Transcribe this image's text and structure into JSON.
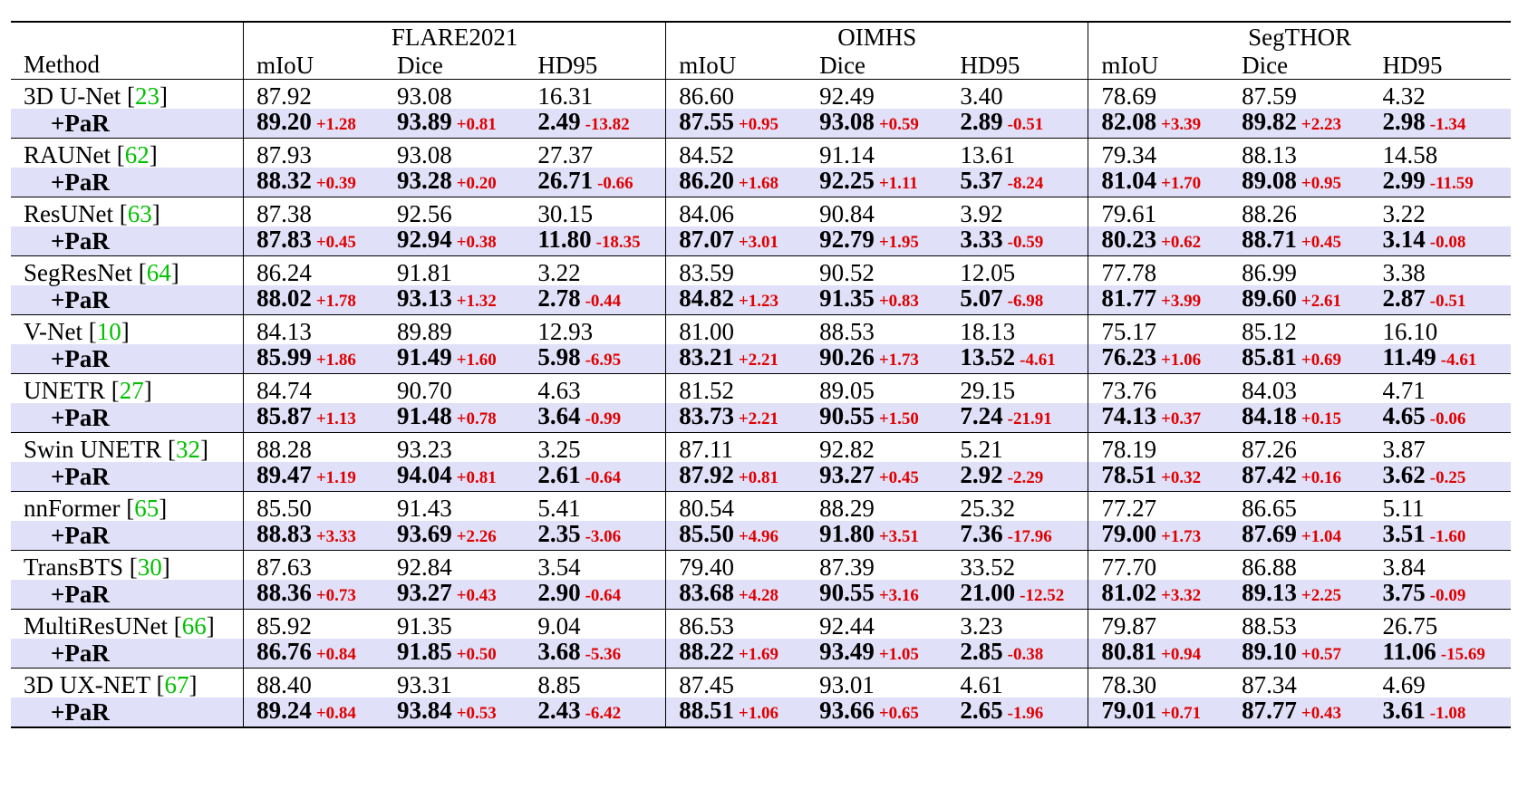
{
  "datasets": [
    "FLARE2021",
    "OIMHS",
    "SegTHOR"
  ],
  "metrics": [
    "mIoU",
    "Dice",
    "HD95"
  ],
  "method_header": "Method",
  "rows": [
    {
      "method": "3D U-Net",
      "ref": "23",
      "base": [
        "87.92",
        "93.08",
        "16.31",
        "86.60",
        "92.49",
        "3.40",
        "78.69",
        "87.59",
        "4.32"
      ],
      "par_label": "+PaR",
      "par": [
        "89.20",
        "93.89",
        "2.49",
        "87.55",
        "93.08",
        "2.89",
        "82.08",
        "89.82",
        "2.98"
      ],
      "delta": [
        "+1.28",
        "+0.81",
        "-13.82",
        "+0.95",
        "+0.59",
        "-0.51",
        "+3.39",
        "+2.23",
        "-1.34"
      ]
    },
    {
      "method": "RAUNet",
      "ref": "62",
      "base": [
        "87.93",
        "93.08",
        "27.37",
        "84.52",
        "91.14",
        "13.61",
        "79.34",
        "88.13",
        "14.58"
      ],
      "par_label": "+PaR",
      "par": [
        "88.32",
        "93.28",
        "26.71",
        "86.20",
        "92.25",
        "5.37",
        "81.04",
        "89.08",
        "2.99"
      ],
      "delta": [
        "+0.39",
        "+0.20",
        "-0.66",
        "+1.68",
        "+1.11",
        "-8.24",
        "+1.70",
        "+0.95",
        "-11.59"
      ]
    },
    {
      "method": "ResUNet",
      "ref": "63",
      "base": [
        "87.38",
        "92.56",
        "30.15",
        "84.06",
        "90.84",
        "3.92",
        "79.61",
        "88.26",
        "3.22"
      ],
      "par_label": "+PaR",
      "par": [
        "87.83",
        "92.94",
        "11.80",
        "87.07",
        "92.79",
        "3.33",
        "80.23",
        "88.71",
        "3.14"
      ],
      "delta": [
        "+0.45",
        "+0.38",
        "-18.35",
        "+3.01",
        "+1.95",
        "-0.59",
        "+0.62",
        "+0.45",
        "-0.08"
      ]
    },
    {
      "method": "SegResNet",
      "ref": "64",
      "base": [
        "86.24",
        "91.81",
        "3.22",
        "83.59",
        "90.52",
        "12.05",
        "77.78",
        "86.99",
        "3.38"
      ],
      "par_label": "+PaR",
      "par": [
        "88.02",
        "93.13",
        "2.78",
        "84.82",
        "91.35",
        "5.07",
        "81.77",
        "89.60",
        "2.87"
      ],
      "delta": [
        "+1.78",
        "+1.32",
        "-0.44",
        "+1.23",
        "+0.83",
        "-6.98",
        "+3.99",
        "+2.61",
        "-0.51"
      ]
    },
    {
      "method": "V-Net",
      "ref": "10",
      "base": [
        "84.13",
        "89.89",
        "12.93",
        "81.00",
        "88.53",
        "18.13",
        "75.17",
        "85.12",
        "16.10"
      ],
      "par_label": "+PaR",
      "par": [
        "85.99",
        "91.49",
        "5.98",
        "83.21",
        "90.26",
        "13.52",
        "76.23",
        "85.81",
        "11.49"
      ],
      "delta": [
        "+1.86",
        "+1.60",
        "-6.95",
        "+2.21",
        "+1.73",
        "-4.61",
        "+1.06",
        "+0.69",
        "-4.61"
      ]
    },
    {
      "method": "UNETR",
      "ref": "27",
      "base": [
        "84.74",
        "90.70",
        "4.63",
        "81.52",
        "89.05",
        "29.15",
        "73.76",
        "84.03",
        "4.71"
      ],
      "par_label": "+PaR",
      "par": [
        "85.87",
        "91.48",
        "3.64",
        "83.73",
        "90.55",
        "7.24",
        "74.13",
        "84.18",
        "4.65"
      ],
      "delta": [
        "+1.13",
        "+0.78",
        "-0.99",
        "+2.21",
        "+1.50",
        "-21.91",
        "+0.37",
        "+0.15",
        "-0.06"
      ]
    },
    {
      "method": "Swin UNETR",
      "ref": "32",
      "base": [
        "88.28",
        "93.23",
        "3.25",
        "87.11",
        "92.82",
        "5.21",
        "78.19",
        "87.26",
        "3.87"
      ],
      "par_label": "+PaR",
      "par": [
        "89.47",
        "94.04",
        "2.61",
        "87.92",
        "93.27",
        "2.92",
        "78.51",
        "87.42",
        "3.62"
      ],
      "delta": [
        "+1.19",
        "+0.81",
        "-0.64",
        "+0.81",
        "+0.45",
        "-2.29",
        "+0.32",
        "+0.16",
        "-0.25"
      ]
    },
    {
      "method": "nnFormer",
      "ref": "65",
      "base": [
        "85.50",
        "91.43",
        "5.41",
        "80.54",
        "88.29",
        "25.32",
        "77.27",
        "86.65",
        "5.11"
      ],
      "par_label": "+PaR",
      "par": [
        "88.83",
        "93.69",
        "2.35",
        "85.50",
        "91.80",
        "7.36",
        "79.00",
        "87.69",
        "3.51"
      ],
      "delta": [
        "+3.33",
        "+2.26",
        "-3.06",
        "+4.96",
        "+3.51",
        "-17.96",
        "+1.73",
        "+1.04",
        "-1.60"
      ]
    },
    {
      "method": "TransBTS",
      "ref": "30",
      "base": [
        "87.63",
        "92.84",
        "3.54",
        "79.40",
        "87.39",
        "33.52",
        "77.70",
        "86.88",
        "3.84"
      ],
      "par_label": "+PaR",
      "par": [
        "88.36",
        "93.27",
        "2.90",
        "83.68",
        "90.55",
        "21.00",
        "81.02",
        "89.13",
        "3.75"
      ],
      "delta": [
        "+0.73",
        "+0.43",
        "-0.64",
        "+4.28",
        "+3.16",
        "-12.52",
        "+3.32",
        "+2.25",
        "-0.09"
      ]
    },
    {
      "method": "MultiResUNet",
      "ref": "66",
      "base": [
        "85.92",
        "91.35",
        "9.04",
        "86.53",
        "92.44",
        "3.23",
        "79.87",
        "88.53",
        "26.75"
      ],
      "par_label": "+PaR",
      "par": [
        "86.76",
        "91.85",
        "3.68",
        "88.22",
        "93.49",
        "2.85",
        "80.81",
        "89.10",
        "11.06"
      ],
      "delta": [
        "+0.84",
        "+0.50",
        "-5.36",
        "+1.69",
        "+1.05",
        "-0.38",
        "+0.94",
        "+0.57",
        "-15.69"
      ]
    },
    {
      "method": "3D UX-NET",
      "ref": "67",
      "base": [
        "88.40",
        "93.31",
        "8.85",
        "87.45",
        "93.01",
        "4.61",
        "78.30",
        "87.34",
        "4.69"
      ],
      "par_label": "+PaR",
      "par": [
        "89.24",
        "93.84",
        "2.43",
        "88.51",
        "93.66",
        "2.65",
        "79.01",
        "87.77",
        "3.61"
      ],
      "delta": [
        "+0.84",
        "+0.53",
        "-6.42",
        "+1.06",
        "+0.65",
        "-1.96",
        "+0.71",
        "+0.43",
        "-1.08"
      ]
    }
  ],
  "colors": {
    "delta": "#e00000",
    "ref": "#00c000",
    "highlight_row": "#e0e0f8"
  }
}
